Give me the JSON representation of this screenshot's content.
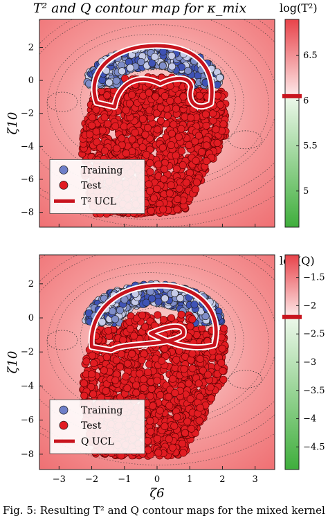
{
  "title": "T² and Q contour map for κ_mix",
  "caption": "Fig. 5: Resulting T² and Q contour maps for the mixed kernel",
  "chart_data": [
    {
      "type": "scatter",
      "xlabel": "ζ6",
      "ylabel": "ζ10",
      "xlim": [
        -3.6,
        3.6
      ],
      "ylim": [
        -8.9,
        3.7
      ],
      "xticks": [
        -3,
        -2,
        -1,
        0,
        1,
        2,
        3
      ],
      "yticks": [
        2,
        0,
        -2,
        -4,
        -6,
        -8
      ],
      "legend": [
        "Training",
        "Test",
        "T² UCL"
      ],
      "legend_position": "bottom-left",
      "colorbar": {
        "label": "log(T²)",
        "range": [
          4.6,
          6.9
        ],
        "ticks": [
          6.5,
          6,
          5.5,
          5
        ],
        "ucl_level": 6.05,
        "colors": {
          "above": "#e8434a",
          "below": "#3fae3c",
          "ucl": "#c8141e"
        }
      },
      "series": [
        {
          "name": "Training",
          "color": "#7f8ec9",
          "region": {
            "x": [
              -2.1,
              1.9
            ],
            "y": [
              -1.6,
              2.5
            ]
          }
        },
        {
          "name": "Test",
          "color": "#e11c22",
          "region": {
            "x": [
              -2.3,
              2.1
            ],
            "y": [
              -8.1,
              -0.6
            ]
          }
        }
      ]
    },
    {
      "type": "scatter",
      "xlabel": "ζ6",
      "ylabel": "ζ10",
      "xlim": [
        -3.6,
        3.6
      ],
      "ylim": [
        -8.9,
        3.7
      ],
      "xticks": [
        -3,
        -2,
        -1,
        0,
        1,
        2,
        3
      ],
      "yticks": [
        2,
        0,
        -2,
        -4,
        -6,
        -8
      ],
      "legend": [
        "Training",
        "Test",
        "Q UCL"
      ],
      "legend_position": "bottom-left",
      "colorbar": {
        "label": "log(Q)",
        "range": [
          -4.9,
          -1.1
        ],
        "ticks": [
          -1.5,
          -2,
          -2.5,
          -3,
          -3.5,
          -4,
          -4.5
        ],
        "ucl_level": -2.2,
        "colors": {
          "above": "#e8434a",
          "below": "#3fae3c",
          "ucl": "#c8141e"
        }
      },
      "series": [
        {
          "name": "Training",
          "color": "#7f8ec9",
          "region": {
            "x": [
              -2.1,
              1.9
            ],
            "y": [
              -1.6,
              2.5
            ]
          }
        },
        {
          "name": "Test",
          "color": "#e11c22",
          "region": {
            "x": [
              -2.3,
              2.1
            ],
            "y": [
              -8.1,
              -0.6
            ]
          }
        }
      ]
    }
  ]
}
